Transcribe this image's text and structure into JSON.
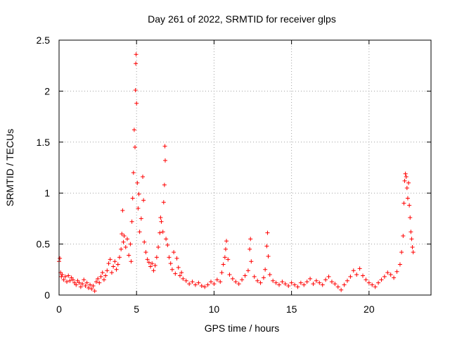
{
  "chart_data": {
    "type": "scatter",
    "title": "Day 261 of 2022, SRMTID for receiver glps",
    "xlabel": "GPS time / hours",
    "ylabel": "SRMTID / TECUs",
    "xlim": [
      0,
      24
    ],
    "ylim": [
      0,
      2.5
    ],
    "xticks": [
      0,
      5,
      10,
      15,
      20
    ],
    "xtick_labels": [
      "0",
      "5",
      "10",
      "15",
      "20"
    ],
    "yticks": [
      0,
      0.5,
      1,
      1.5,
      2,
      2.5
    ],
    "ytick_labels": [
      "0",
      "0.5",
      "1",
      "1.5",
      "2",
      "2.5"
    ],
    "grid": true,
    "marker": "+",
    "color": "#ff0000",
    "series": [
      {
        "name": "SRMTID",
        "points": [
          [
            0.0,
            0.33
          ],
          [
            0.05,
            0.36
          ],
          [
            0.1,
            0.22
          ],
          [
            0.15,
            0.18
          ],
          [
            0.2,
            0.2
          ],
          [
            0.3,
            0.15
          ],
          [
            0.4,
            0.18
          ],
          [
            0.5,
            0.13
          ],
          [
            0.6,
            0.19
          ],
          [
            0.7,
            0.14
          ],
          [
            0.8,
            0.17
          ],
          [
            0.9,
            0.15
          ],
          [
            1.0,
            0.12
          ],
          [
            1.1,
            0.1
          ],
          [
            1.2,
            0.14
          ],
          [
            1.3,
            0.12
          ],
          [
            1.4,
            0.08
          ],
          [
            1.5,
            0.11
          ],
          [
            1.6,
            0.15
          ],
          [
            1.7,
            0.09
          ],
          [
            1.8,
            0.12
          ],
          [
            1.9,
            0.07
          ],
          [
            2.0,
            0.1
          ],
          [
            2.1,
            0.06
          ],
          [
            2.2,
            0.09
          ],
          [
            2.3,
            0.04
          ],
          [
            2.4,
            0.13
          ],
          [
            2.5,
            0.16
          ],
          [
            2.6,
            0.12
          ],
          [
            2.7,
            0.18
          ],
          [
            2.8,
            0.22
          ],
          [
            2.9,
            0.15
          ],
          [
            3.0,
            0.19
          ],
          [
            3.1,
            0.24
          ],
          [
            3.2,
            0.31
          ],
          [
            3.3,
            0.35
          ],
          [
            3.4,
            0.22
          ],
          [
            3.5,
            0.28
          ],
          [
            3.6,
            0.33
          ],
          [
            3.7,
            0.25
          ],
          [
            3.8,
            0.3
          ],
          [
            3.9,
            0.37
          ],
          [
            4.0,
            0.45
          ],
          [
            4.05,
            0.6
          ],
          [
            4.1,
            0.83
          ],
          [
            4.15,
            0.52
          ],
          [
            4.2,
            0.58
          ],
          [
            4.3,
            0.47
          ],
          [
            4.4,
            0.55
          ],
          [
            4.5,
            0.39
          ],
          [
            4.6,
            0.5
          ],
          [
            4.65,
            0.33
          ],
          [
            4.7,
            0.72
          ],
          [
            4.75,
            0.95
          ],
          [
            4.8,
            1.2
          ],
          [
            4.85,
            1.62
          ],
          [
            4.9,
            1.45
          ],
          [
            4.93,
            2.01
          ],
          [
            4.95,
            2.27
          ],
          [
            4.97,
            2.36
          ],
          [
            5.0,
            1.88
          ],
          [
            5.05,
            1.1
          ],
          [
            5.1,
            0.85
          ],
          [
            5.15,
            0.99
          ],
          [
            5.2,
            0.62
          ],
          [
            5.3,
            0.75
          ],
          [
            5.4,
            1.16
          ],
          [
            5.45,
            0.93
          ],
          [
            5.5,
            0.52
          ],
          [
            5.6,
            0.42
          ],
          [
            5.7,
            0.35
          ],
          [
            5.8,
            0.32
          ],
          [
            5.9,
            0.28
          ],
          [
            6.0,
            0.31
          ],
          [
            6.1,
            0.24
          ],
          [
            6.2,
            0.29
          ],
          [
            6.3,
            0.37
          ],
          [
            6.4,
            0.47
          ],
          [
            6.5,
            0.61
          ],
          [
            6.55,
            0.76
          ],
          [
            6.6,
            0.72
          ],
          [
            6.7,
            0.62
          ],
          [
            6.75,
            0.91
          ],
          [
            6.8,
            1.08
          ],
          [
            6.83,
            1.46
          ],
          [
            6.85,
            1.32
          ],
          [
            6.9,
            0.55
          ],
          [
            7.0,
            0.49
          ],
          [
            7.1,
            0.37
          ],
          [
            7.2,
            0.31
          ],
          [
            7.3,
            0.25
          ],
          [
            7.4,
            0.42
          ],
          [
            7.5,
            0.21
          ],
          [
            7.6,
            0.36
          ],
          [
            7.7,
            0.27
          ],
          [
            7.8,
            0.19
          ],
          [
            7.9,
            0.22
          ],
          [
            8.0,
            0.16
          ],
          [
            8.2,
            0.14
          ],
          [
            8.4,
            0.11
          ],
          [
            8.6,
            0.13
          ],
          [
            8.8,
            0.1
          ],
          [
            9.0,
            0.12
          ],
          [
            9.2,
            0.09
          ],
          [
            9.4,
            0.08
          ],
          [
            9.6,
            0.1
          ],
          [
            9.8,
            0.13
          ],
          [
            10.0,
            0.11
          ],
          [
            10.2,
            0.15
          ],
          [
            10.4,
            0.13
          ],
          [
            10.5,
            0.22
          ],
          [
            10.6,
            0.3
          ],
          [
            10.7,
            0.37
          ],
          [
            10.75,
            0.45
          ],
          [
            10.8,
            0.53
          ],
          [
            10.9,
            0.35
          ],
          [
            11.0,
            0.2
          ],
          [
            11.2,
            0.16
          ],
          [
            11.4,
            0.13
          ],
          [
            11.6,
            0.11
          ],
          [
            11.8,
            0.15
          ],
          [
            12.0,
            0.19
          ],
          [
            12.2,
            0.24
          ],
          [
            12.3,
            0.45
          ],
          [
            12.35,
            0.55
          ],
          [
            12.4,
            0.33
          ],
          [
            12.6,
            0.18
          ],
          [
            12.8,
            0.14
          ],
          [
            13.0,
            0.12
          ],
          [
            13.2,
            0.17
          ],
          [
            13.3,
            0.25
          ],
          [
            13.4,
            0.48
          ],
          [
            13.45,
            0.61
          ],
          [
            13.5,
            0.38
          ],
          [
            13.6,
            0.2
          ],
          [
            13.8,
            0.14
          ],
          [
            14.0,
            0.12
          ],
          [
            14.2,
            0.1
          ],
          [
            14.4,
            0.13
          ],
          [
            14.6,
            0.11
          ],
          [
            14.8,
            0.09
          ],
          [
            15.0,
            0.12
          ],
          [
            15.2,
            0.1
          ],
          [
            15.4,
            0.08
          ],
          [
            15.6,
            0.12
          ],
          [
            15.8,
            0.1
          ],
          [
            16.0,
            0.13
          ],
          [
            16.2,
            0.16
          ],
          [
            16.4,
            0.11
          ],
          [
            16.6,
            0.14
          ],
          [
            16.8,
            0.12
          ],
          [
            17.0,
            0.1
          ],
          [
            17.2,
            0.15
          ],
          [
            17.4,
            0.18
          ],
          [
            17.6,
            0.13
          ],
          [
            17.8,
            0.11
          ],
          [
            18.0,
            0.08
          ],
          [
            18.2,
            0.05
          ],
          [
            18.4,
            0.1
          ],
          [
            18.6,
            0.14
          ],
          [
            18.8,
            0.18
          ],
          [
            19.0,
            0.24
          ],
          [
            19.2,
            0.2
          ],
          [
            19.4,
            0.26
          ],
          [
            19.6,
            0.19
          ],
          [
            19.8,
            0.15
          ],
          [
            20.0,
            0.12
          ],
          [
            20.2,
            0.1
          ],
          [
            20.4,
            0.08
          ],
          [
            20.6,
            0.12
          ],
          [
            20.8,
            0.15
          ],
          [
            21.0,
            0.18
          ],
          [
            21.2,
            0.22
          ],
          [
            21.4,
            0.2
          ],
          [
            21.6,
            0.17
          ],
          [
            21.8,
            0.23
          ],
          [
            22.0,
            0.3
          ],
          [
            22.1,
            0.42
          ],
          [
            22.2,
            0.58
          ],
          [
            22.25,
            0.9
          ],
          [
            22.3,
            1.12
          ],
          [
            22.35,
            1.19
          ],
          [
            22.4,
            1.16
          ],
          [
            22.45,
            1.05
          ],
          [
            22.5,
            0.95
          ],
          [
            22.55,
            1.1
          ],
          [
            22.6,
            0.88
          ],
          [
            22.65,
            0.76
          ],
          [
            22.7,
            0.62
          ],
          [
            22.75,
            0.55
          ],
          [
            22.8,
            0.47
          ],
          [
            22.85,
            0.42
          ]
        ]
      }
    ]
  }
}
